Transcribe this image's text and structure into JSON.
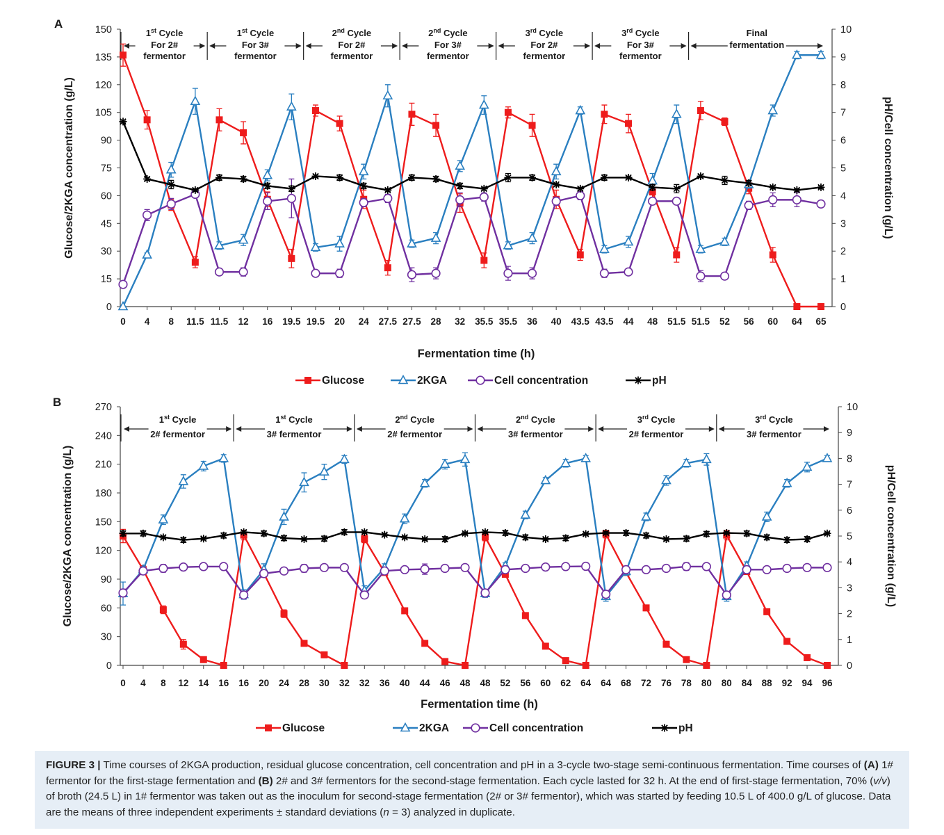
{
  "caption": {
    "label": "FIGURE 3 |",
    "text_1": " Time courses of 2KGA production, residual glucose concentration, cell concentration and pH in a 3-cycle two-stage semi-continuous fermentation. Time courses of ",
    "bold_a": "(A)",
    "text_2": " 1# fermentor for the first-stage fermentation and ",
    "bold_b": "(B)",
    "text_3": " 2# and 3# fermentors for the second-stage fermentation. Each cycle lasted for 32 h. At the end of first-stage fermentation, 70% (",
    "italic_vv": "v/v",
    "text_4": ") of broth (24.5 L) in 1# fermentor was taken out as the inoculum for second-stage fermentation (2# or 3# fermentor), which was started by feeding 10.5 L of 400.0 g/L of glucose. Data are the means of three independent experiments ± standard deviations (",
    "italic_n": "n",
    "text_5": " = 3) analyzed in duplicate."
  },
  "legend": [
    {
      "name": "Glucose",
      "color": "#ee1c1c",
      "marker": "filled-square"
    },
    {
      "name": "2KGA",
      "color": "#2a7fc0",
      "marker": "open-triangle"
    },
    {
      "name": "Cell concentration",
      "color": "#7030a0",
      "marker": "open-circle"
    },
    {
      "name": "pH",
      "color": "#000000",
      "marker": "star"
    }
  ],
  "chart_data": [
    {
      "panel": "A",
      "type": "line",
      "xlabel": "Fermentation time (h)",
      "ylabel_left": "Glucose/2KGA concentration (g/L)",
      "ylabel_right": "pH/Cell concentration (g/L)",
      "ylim_left": [
        0,
        150
      ],
      "yticks_left": [
        0,
        15,
        30,
        45,
        60,
        75,
        90,
        105,
        120,
        135,
        150
      ],
      "ylim_right": [
        0,
        10
      ],
      "yticks_right": [
        0,
        1,
        2,
        3,
        4,
        5,
        6,
        7,
        8,
        9,
        10
      ],
      "categories": [
        "0",
        "4",
        "8",
        "11.5",
        "11.5",
        "12",
        "16",
        "19.5",
        "19.5",
        "20",
        "24",
        "27.5",
        "27.5",
        "28",
        "32",
        "35.5",
        "35.5",
        "36",
        "40",
        "43.5",
        "43.5",
        "44",
        "48",
        "51.5",
        "51.5",
        "52",
        "56",
        "60",
        "64",
        "65"
      ],
      "tick_labels": [
        "0",
        "4",
        "8",
        "11.5",
        "11.5",
        "12",
        "16",
        "19.5",
        "19.5",
        "20",
        "24",
        "27.5",
        "27.5",
        "28",
        "32",
        "35.5",
        "35.5",
        "36",
        "40",
        "43.5",
        "43.5",
        "44",
        "48",
        "51.5",
        "51.5",
        "52",
        "56",
        "60",
        "64",
        "65"
      ],
      "cycles": [
        {
          "top": "1st Cycle",
          "sup": "st",
          "lines": [
            "For 2#",
            "fermentor"
          ]
        },
        {
          "top": "1st Cycle",
          "sup": "st",
          "lines": [
            "For 3#",
            "fermentor"
          ]
        },
        {
          "top": "2nd Cycle",
          "sup": "nd",
          "lines": [
            "For 2#",
            "fermentor"
          ]
        },
        {
          "top": "2nd Cycle",
          "sup": "nd",
          "lines": [
            "For 3#",
            "fermentor"
          ]
        },
        {
          "top": "3rd Cycle",
          "sup": "rd",
          "lines": [
            "For 2#",
            "fermentor"
          ]
        },
        {
          "top": "3rd Cycle",
          "sup": "rd",
          "lines": [
            "For 3#",
            "fermentor"
          ]
        },
        {
          "top": "Final",
          "sup": "",
          "lines": [
            "fermentation"
          ]
        }
      ],
      "cycle_boundaries_after_category": [
        3.5,
        7.5,
        11.5,
        15.5,
        19.5,
        23.5
      ],
      "series": [
        {
          "name": "Glucose",
          "axis": "left",
          "values": [
            136,
            101,
            55,
            24,
            101,
            94,
            58,
            26,
            106,
            99,
            58,
            21,
            104,
            98,
            56,
            25,
            105,
            98,
            58,
            28,
            104,
            99,
            62,
            28,
            106,
            100,
            64,
            28,
            0,
            0
          ],
          "errors": [
            6,
            5,
            3,
            3,
            6,
            6,
            4,
            5,
            3,
            4,
            5,
            4,
            6,
            6,
            5,
            4,
            3,
            6,
            5,
            3,
            5,
            5,
            4,
            4,
            5,
            2,
            3,
            4,
            0,
            0
          ]
        },
        {
          "name": "2KGA",
          "axis": "left",
          "values": [
            0,
            28,
            74,
            111,
            33,
            36,
            71,
            108,
            32,
            34,
            73,
            114,
            34,
            37,
            76,
            109,
            33,
            37,
            73,
            106,
            31,
            35,
            68,
            104,
            31,
            35,
            66,
            106,
            136,
            136
          ],
          "errors": [
            0,
            1,
            4,
            7,
            2,
            3,
            3,
            7,
            2,
            4,
            4,
            6,
            2,
            3,
            3,
            5,
            2,
            3,
            4,
            2,
            2,
            3,
            4,
            5,
            2,
            2,
            2,
            3,
            2,
            2
          ]
        },
        {
          "name": "Cell concentration",
          "axis": "right",
          "values": [
            0.8,
            3.3,
            3.7,
            4.05,
            1.25,
            1.25,
            3.8,
            3.9,
            1.2,
            1.2,
            3.75,
            3.9,
            1.15,
            1.2,
            3.85,
            3.95,
            1.2,
            1.2,
            3.8,
            4.0,
            1.2,
            1.25,
            3.8,
            3.8,
            1.1,
            1.1,
            3.65,
            3.85,
            3.85,
            3.7
          ],
          "errors": [
            0.1,
            0.2,
            0.2,
            0.1,
            0.1,
            0.15,
            0.3,
            0.7,
            0.1,
            0.15,
            0.15,
            0.15,
            0.25,
            0.2,
            0.25,
            0.15,
            0.25,
            0.2,
            0.15,
            0.15,
            0.15,
            0.1,
            0.1,
            0.1,
            0.2,
            0.1,
            0.15,
            0.25,
            0.25,
            0.05
          ]
        },
        {
          "name": "pH",
          "axis": "right",
          "values": [
            6.67,
            4.6,
            4.4,
            4.2,
            4.65,
            4.6,
            4.35,
            4.25,
            4.7,
            4.65,
            4.35,
            4.2,
            4.65,
            4.6,
            4.35,
            4.25,
            4.65,
            4.65,
            4.4,
            4.25,
            4.65,
            4.65,
            4.3,
            4.25,
            4.7,
            4.55,
            4.45,
            4.3,
            4.2,
            4.3
          ],
          "errors": [
            0.05,
            0.05,
            0.15,
            0.05,
            0.1,
            0.1,
            0.1,
            0.1,
            0.05,
            0.1,
            0.1,
            0.05,
            0.1,
            0.1,
            0.1,
            0.05,
            0.15,
            0.1,
            0.05,
            0.05,
            0.1,
            0.05,
            0.1,
            0.15,
            0.05,
            0.15,
            0.1,
            0.05,
            0.05,
            0.05
          ]
        }
      ]
    },
    {
      "panel": "B",
      "type": "line",
      "xlabel": "Fermentation time (h)",
      "ylabel_left": "Glucose/2KGA concentration (g/L)",
      "ylabel_right": "pH/Cell concentration (g/L)",
      "ylim_left": [
        0,
        270
      ],
      "yticks_left": [
        0,
        30,
        60,
        90,
        120,
        150,
        180,
        210,
        240,
        270
      ],
      "ylim_right": [
        0,
        10
      ],
      "yticks_right": [
        0,
        1,
        2,
        3,
        4,
        5,
        6,
        7,
        8,
        9,
        10
      ],
      "categories": [
        "0",
        "4",
        "8",
        "12",
        "14",
        "16",
        "16",
        "20",
        "24",
        "28",
        "30",
        "32",
        "32",
        "36",
        "40",
        "44",
        "46",
        "48",
        "48",
        "52",
        "56",
        "60",
        "62",
        "64",
        "64",
        "68",
        "72",
        "76",
        "78",
        "80",
        "80",
        "84",
        "88",
        "92",
        "94",
        "96"
      ],
      "tick_labels": [
        "0",
        "4",
        "8",
        "12",
        "14",
        "16",
        "16",
        "20",
        "24",
        "28",
        "30",
        "32",
        "32",
        "36",
        "40",
        "44",
        "46",
        "48",
        "48",
        "52",
        "56",
        "60",
        "62",
        "64",
        "64",
        "68",
        "72",
        "76",
        "78",
        "80",
        "80",
        "84",
        "88",
        "92",
        "94",
        "96"
      ],
      "cycles": [
        {
          "top": "1st Cycle",
          "sup": "st",
          "lines": [
            "2# fermentor"
          ]
        },
        {
          "top": "1st Cycle",
          "sup": "st",
          "lines": [
            "3# fermentor"
          ]
        },
        {
          "top": "2nd Cycle",
          "sup": "nd",
          "lines": [
            "2# fermentor"
          ]
        },
        {
          "top": "2nd Cycle",
          "sup": "nd",
          "lines": [
            "3# fermentor"
          ]
        },
        {
          "top": "3rd Cycle",
          "sup": "rd",
          "lines": [
            "2# fermentor"
          ]
        },
        {
          "top": "3rd Cycle",
          "sup": "rd",
          "lines": [
            "3# fermentor"
          ]
        }
      ],
      "cycle_boundaries_after_category": [
        5.5,
        11.5,
        17.5,
        23.5,
        29.5
      ],
      "series": [
        {
          "name": "Glucose",
          "axis": "left",
          "values": [
            135,
            100,
            58,
            22,
            6,
            0,
            136,
            96,
            54,
            23,
            11,
            0,
            132,
            97,
            57,
            23,
            4,
            0,
            134,
            95,
            52,
            20,
            5,
            0,
            137,
            97,
            60,
            22,
            6,
            0,
            136,
            98,
            56,
            25,
            8,
            0
          ],
          "errors": [
            7,
            4,
            4,
            5,
            2,
            0,
            5,
            4,
            4,
            3,
            3,
            0,
            4,
            3,
            3,
            3,
            2,
            0,
            4,
            3,
            3,
            2,
            2,
            0,
            4,
            3,
            3,
            3,
            2,
            0,
            5,
            3,
            3,
            3,
            2,
            0
          ]
        },
        {
          "name": "2KGA",
          "axis": "left",
          "values": [
            75,
            100,
            152,
            192,
            208,
            216,
            74,
            100,
            155,
            191,
            202,
            215,
            78,
            102,
            153,
            190,
            210,
            215,
            75,
            104,
            157,
            193,
            211,
            216,
            72,
            98,
            155,
            193,
            211,
            215,
            72,
            104,
            155,
            190,
            207,
            216
          ],
          "errors": [
            12,
            3,
            5,
            7,
            5,
            4,
            5,
            6,
            8,
            10,
            8,
            4,
            5,
            4,
            5,
            4,
            5,
            7,
            4,
            3,
            4,
            3,
            4,
            3,
            5,
            4,
            4,
            5,
            4,
            6,
            5,
            4,
            5,
            4,
            5,
            3
          ]
        },
        {
          "name": "Cell concentration",
          "axis": "right",
          "values": [
            2.8,
            3.65,
            3.75,
            3.8,
            3.82,
            3.82,
            2.72,
            3.55,
            3.65,
            3.75,
            3.78,
            3.78,
            2.72,
            3.65,
            3.7,
            3.72,
            3.75,
            3.78,
            2.8,
            3.7,
            3.75,
            3.8,
            3.82,
            3.83,
            2.75,
            3.7,
            3.7,
            3.75,
            3.82,
            3.82,
            2.72,
            3.7,
            3.7,
            3.75,
            3.78,
            3.78
          ],
          "errors": [
            0.15,
            0.1,
            0.15,
            0.05,
            0.05,
            0.05,
            0.15,
            0.1,
            0.05,
            0.15,
            0.1,
            0.05,
            0.1,
            0.1,
            0.05,
            0.2,
            0.1,
            0.05,
            0.1,
            0.05,
            0.05,
            0.05,
            0.05,
            0.05,
            0.1,
            0.05,
            0.05,
            0.05,
            0.15,
            0.05,
            0.1,
            0.05,
            0.05,
            0.05,
            0.05,
            0.05
          ]
        },
        {
          "name": "pH",
          "axis": "right",
          "values": [
            5.1,
            5.1,
            4.95,
            4.85,
            4.9,
            5.02,
            5.15,
            5.1,
            4.92,
            4.88,
            4.9,
            5.15,
            5.15,
            5.05,
            4.95,
            4.88,
            4.88,
            5.1,
            5.15,
            5.12,
            4.95,
            4.88,
            4.92,
            5.08,
            5.12,
            5.12,
            5.02,
            4.88,
            4.9,
            5.08,
            5.12,
            5.1,
            4.95,
            4.85,
            4.88,
            5.1
          ],
          "errors": [
            0.1,
            0.1,
            0.05,
            0.1,
            0.05,
            0.1,
            0.05,
            0.1,
            0.1,
            0.05,
            0.1,
            0.1,
            0.05,
            0.05,
            0.05,
            0.05,
            0.1,
            0.05,
            0.05,
            0.1,
            0.1,
            0.05,
            0.1,
            0.05,
            0.05,
            0.1,
            0.1,
            0.05,
            0.1,
            0.1,
            0.05,
            0.1,
            0.1,
            0.1,
            0.1,
            0.05
          ]
        }
      ]
    }
  ]
}
